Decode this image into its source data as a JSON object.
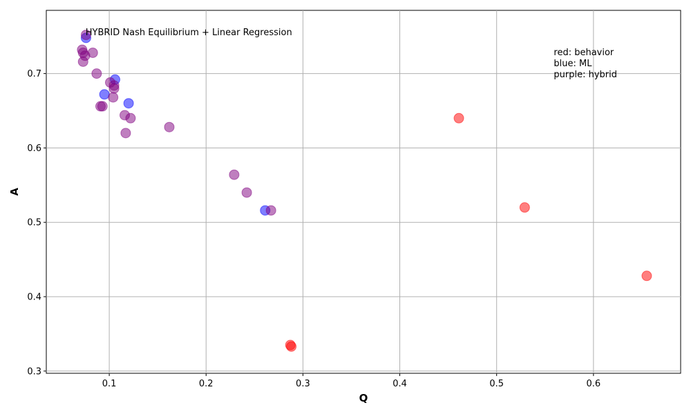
{
  "chart_data": {
    "type": "scatter",
    "xlabel": "Q",
    "ylabel": "A",
    "xlim": [
      0.035,
      0.69
    ],
    "ylim": [
      0.297,
      0.785
    ],
    "xticks": [
      "0.1",
      "0.2",
      "0.3",
      "0.4",
      "0.5",
      "0.6"
    ],
    "yticks": [
      "0.3",
      "0.4",
      "0.5",
      "0.6",
      "0.7"
    ],
    "grid": true,
    "annotation": "HYBRID Nash Equilibrium + Linear Regression",
    "legend_lines": [
      "red: behavior",
      "blue: ML",
      "purple: hybrid"
    ],
    "series": [
      {
        "color": "#ff0000",
        "points": [
          {
            "x": 0.461,
            "y": 0.64
          },
          {
            "x": 0.529,
            "y": 0.52
          },
          {
            "x": 0.655,
            "y": 0.428
          },
          {
            "x": 0.287,
            "y": 0.335
          },
          {
            "x": 0.288,
            "y": 0.333
          }
        ]
      },
      {
        "color": "#0000ff",
        "points": [
          {
            "x": 0.076,
            "y": 0.748
          },
          {
            "x": 0.106,
            "y": 0.692
          },
          {
            "x": 0.095,
            "y": 0.672
          },
          {
            "x": 0.12,
            "y": 0.66
          },
          {
            "x": 0.261,
            "y": 0.516
          }
        ]
      },
      {
        "color": "#800080",
        "points": [
          {
            "x": 0.076,
            "y": 0.752
          },
          {
            "x": 0.072,
            "y": 0.732
          },
          {
            "x": 0.073,
            "y": 0.728
          },
          {
            "x": 0.083,
            "y": 0.728
          },
          {
            "x": 0.075,
            "y": 0.724
          },
          {
            "x": 0.073,
            "y": 0.716
          },
          {
            "x": 0.087,
            "y": 0.7
          },
          {
            "x": 0.101,
            "y": 0.688
          },
          {
            "x": 0.105,
            "y": 0.684
          },
          {
            "x": 0.105,
            "y": 0.68
          },
          {
            "x": 0.104,
            "y": 0.668
          },
          {
            "x": 0.091,
            "y": 0.656
          },
          {
            "x": 0.093,
            "y": 0.656
          },
          {
            "x": 0.116,
            "y": 0.644
          },
          {
            "x": 0.122,
            "y": 0.64
          },
          {
            "x": 0.117,
            "y": 0.62
          },
          {
            "x": 0.162,
            "y": 0.628
          },
          {
            "x": 0.229,
            "y": 0.564
          },
          {
            "x": 0.242,
            "y": 0.54
          },
          {
            "x": 0.267,
            "y": 0.516
          }
        ]
      }
    ]
  }
}
